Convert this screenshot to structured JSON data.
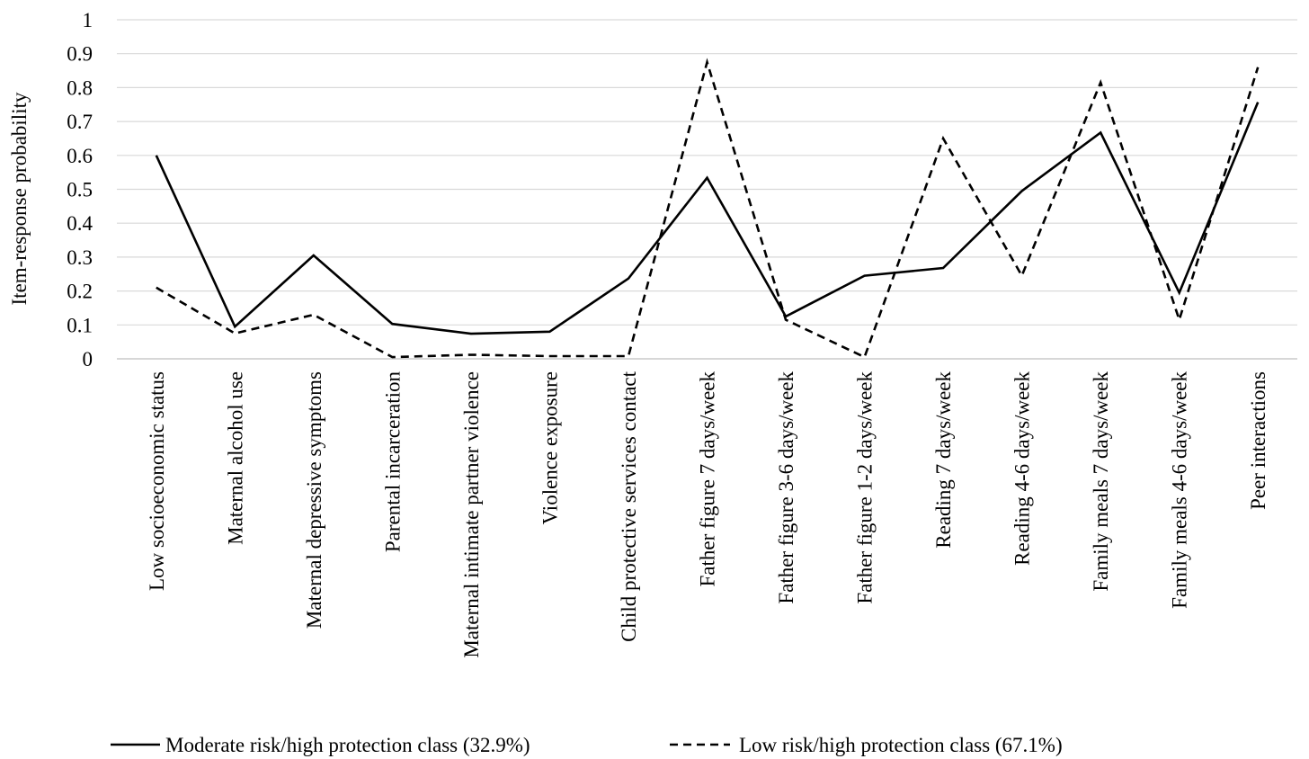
{
  "chart_data": {
    "type": "line",
    "title": "",
    "xlabel": "",
    "ylabel": "Item-response probability",
    "ylim": [
      0,
      1
    ],
    "yticks": [
      "0",
      "0.1",
      "0.2",
      "0.3",
      "0.4",
      "0.5",
      "0.6",
      "0.7",
      "0.8",
      "0.9",
      "1"
    ],
    "grid": true,
    "legend_position": "bottom",
    "categories": [
      "Low socioeconomic status",
      "Maternal alcohol use",
      "Maternal depressive symptoms",
      "Parental incarceration",
      "Maternal intimate partner violence",
      "Violence exposure",
      "Child protective services contact",
      "Father figure 7 days/week",
      "Father figure 3-6 days/week",
      "Father figure 1-2 days/week",
      "Reading 7 days/week",
      "Reading 4-6 days/week",
      "Family meals 7 days/week",
      "Family meals 4-6 days/week",
      "Peer interactions"
    ],
    "series": [
      {
        "name": "Moderate risk/high protection class (32.9%)",
        "style": "solid",
        "color": "#000000",
        "values": [
          0.6,
          0.095,
          0.305,
          0.103,
          0.074,
          0.08,
          0.237,
          0.534,
          0.125,
          0.245,
          0.268,
          0.495,
          0.667,
          0.195,
          0.757
        ]
      },
      {
        "name": "Low risk/high protection class (67.1%)",
        "style": "dashed",
        "color": "#000000",
        "values": [
          0.21,
          0.075,
          0.13,
          0.005,
          0.012,
          0.008,
          0.008,
          0.875,
          0.115,
          0.005,
          0.65,
          0.245,
          0.815,
          0.115,
          0.86
        ]
      }
    ]
  }
}
